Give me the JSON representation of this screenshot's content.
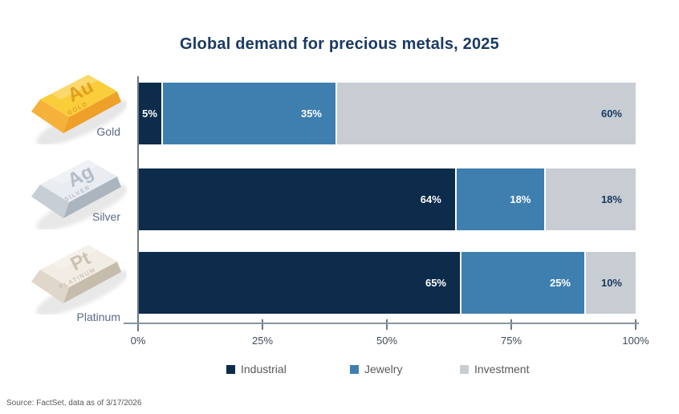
{
  "title": "Global demand for precious metals, 2025",
  "source": "Source: FactSet, data as of 3/17/2026",
  "colors": {
    "title_text": "#1B3A63",
    "value_on_dark": "#FFFFFF",
    "value_on_light": "#17375E",
    "axis_line": "#8A94A1",
    "tick_text": "#414B58",
    "metal_label_text": "#5A6A85",
    "legend_text": "#595959",
    "source_text": "#595959"
  },
  "chart_data": {
    "type": "bar",
    "orientation": "horizontal",
    "stacked": true,
    "title": "Global demand for precious metals, 2025",
    "categories": [
      "Gold",
      "Silver",
      "Platinum"
    ],
    "series": [
      {
        "name": "Industrial",
        "color": "#0D2B4B",
        "values": [
          5,
          64,
          65
        ]
      },
      {
        "name": "Jewelry",
        "color": "#3F7FB0",
        "values": [
          35,
          18,
          25
        ]
      },
      {
        "name": "Investment",
        "color": "#C8CDD4",
        "values": [
          60,
          18,
          10
        ]
      }
    ],
    "value_suffix": "%",
    "x_ticks": [
      "0%",
      "25%",
      "50%",
      "75%",
      "100%"
    ],
    "xlim": [
      0,
      100
    ],
    "grid": false,
    "legend": [
      "Industrial",
      "Jewelry",
      "Investment"
    ],
    "legend_position": "bottom"
  },
  "metals": [
    {
      "name": "Gold",
      "symbol": "Au",
      "engraving": "GOLD",
      "icon_colors": {
        "top": "#FACD3B",
        "front": "#F5B13A",
        "side": "#EFA028",
        "engrave": "#DF9A1F",
        "shadow": "#D9D9D9"
      }
    },
    {
      "name": "Silver",
      "symbol": "Ag",
      "engraving": "SILVER",
      "icon_colors": {
        "top": "#E9EDF2",
        "front": "#C7CED6",
        "side": "#ABB5BF",
        "engrave": "#AEB7C3",
        "shadow": "#DCDCDC"
      }
    },
    {
      "name": "Platinum",
      "symbol": "Pt",
      "engraving": "PLATINUM",
      "icon_colors": {
        "top": "#F1EDE5",
        "front": "#DFD7C9",
        "side": "#C6BCAC",
        "engrave": "#C8BEAB",
        "shadow": "#DCDCDC"
      }
    }
  ],
  "legend_items": [
    {
      "label": "Industrial",
      "color": "#0D2B4B"
    },
    {
      "label": "Jewelry",
      "color": "#3F7FB0"
    },
    {
      "label": "Investment",
      "color": "#C8CDD4"
    }
  ]
}
